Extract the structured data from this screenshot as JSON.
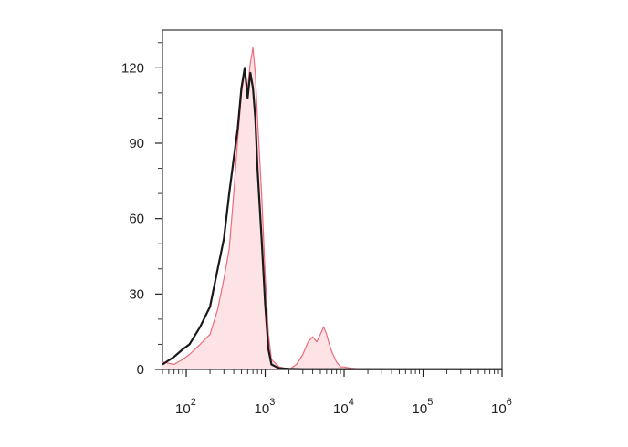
{
  "chart_data": {
    "type": "area",
    "title": "",
    "xlabel": "",
    "ylabel": "",
    "xscale": "log",
    "xlim": [
      50,
      1000000
    ],
    "ylim": [
      0,
      135
    ],
    "x_ticks": [
      {
        "value": 100,
        "base": "10",
        "exp": "2"
      },
      {
        "value": 1000,
        "base": "10",
        "exp": "3"
      },
      {
        "value": 10000,
        "base": "10",
        "exp": "4"
      },
      {
        "value": 100000,
        "base": "10",
        "exp": "5"
      },
      {
        "value": 1000000,
        "base": "10",
        "exp": "6"
      }
    ],
    "y_ticks": [
      {
        "value": 0,
        "label": "0"
      },
      {
        "value": 30,
        "label": "30"
      },
      {
        "value": 60,
        "label": "60"
      },
      {
        "value": 90,
        "label": "90"
      },
      {
        "value": 120,
        "label": "120"
      }
    ],
    "grid": false,
    "legend": "none",
    "series": [
      {
        "style": "filled",
        "color": "#f06a7a",
        "fill": "#fde3e6",
        "x": [
          50,
          70,
          90,
          110,
          150,
          200,
          250,
          300,
          350,
          400,
          450,
          500,
          550,
          600,
          650,
          700,
          750,
          800,
          900,
          1000,
          1100,
          1200,
          1500,
          2000,
          2500,
          3000,
          3500,
          4000,
          4500,
          5000,
          5500,
          6000,
          6500,
          7000,
          8000,
          9000,
          10000,
          12000,
          15000,
          20000,
          50000,
          100000,
          1000000
        ],
        "y": [
          3,
          2,
          4,
          6,
          10,
          14,
          24,
          36,
          48,
          70,
          92,
          110,
          118,
          112,
          122,
          128,
          118,
          100,
          70,
          38,
          14,
          4,
          1,
          0,
          2,
          6,
          11,
          13,
          11,
          14,
          17,
          14,
          10,
          7,
          3,
          1,
          1,
          0.5,
          0.3,
          0.2,
          0.1,
          0.1,
          0.1
        ]
      },
      {
        "style": "line",
        "color": "#1a1a1a",
        "x": [
          50,
          70,
          90,
          110,
          150,
          200,
          250,
          300,
          350,
          400,
          450,
          500,
          550,
          600,
          650,
          700,
          750,
          800,
          900,
          1000,
          1100,
          1200,
          1500,
          2000,
          3000,
          5000,
          10000,
          100000,
          1000000
        ],
        "y": [
          2,
          5,
          8,
          10,
          17,
          25,
          40,
          52,
          70,
          84,
          96,
          112,
          120,
          108,
          118,
          112,
          100,
          80,
          52,
          26,
          8,
          2,
          0.5,
          0.2,
          0.1,
          0.1,
          0.1,
          0.1,
          0.1
        ]
      }
    ]
  }
}
